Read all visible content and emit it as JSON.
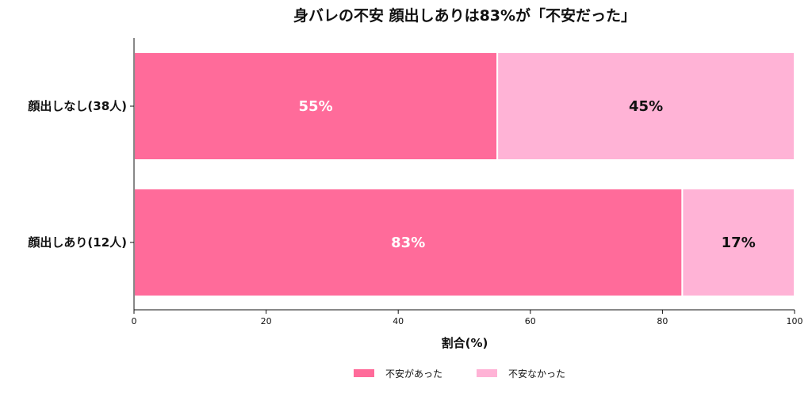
{
  "chart_data": {
    "type": "bar",
    "orientation": "horizontal",
    "stacked": true,
    "title": "身バレの不安 顔出しありは83%が「不安だった」",
    "xlabel": "割合(%)",
    "ylabel": "",
    "xlim": [
      0,
      100
    ],
    "xticks": [
      "0",
      "20",
      "40",
      "60",
      "80",
      "100"
    ],
    "categories": [
      "顔出しなし(38人)",
      "顔出しあり(12人)"
    ],
    "series": [
      {
        "name": "不安があった",
        "values": [
          55,
          83
        ],
        "labels": [
          "55%",
          "83%"
        ],
        "color": "#ff6b9a",
        "label_color": "#ffffff"
      },
      {
        "name": "不安なかった",
        "values": [
          45,
          17
        ],
        "labels": [
          "45%",
          "17%"
        ],
        "color": "#ffb3d6",
        "label_color": "#111111"
      }
    ],
    "legend_position": "bottom-center",
    "grid": false
  }
}
